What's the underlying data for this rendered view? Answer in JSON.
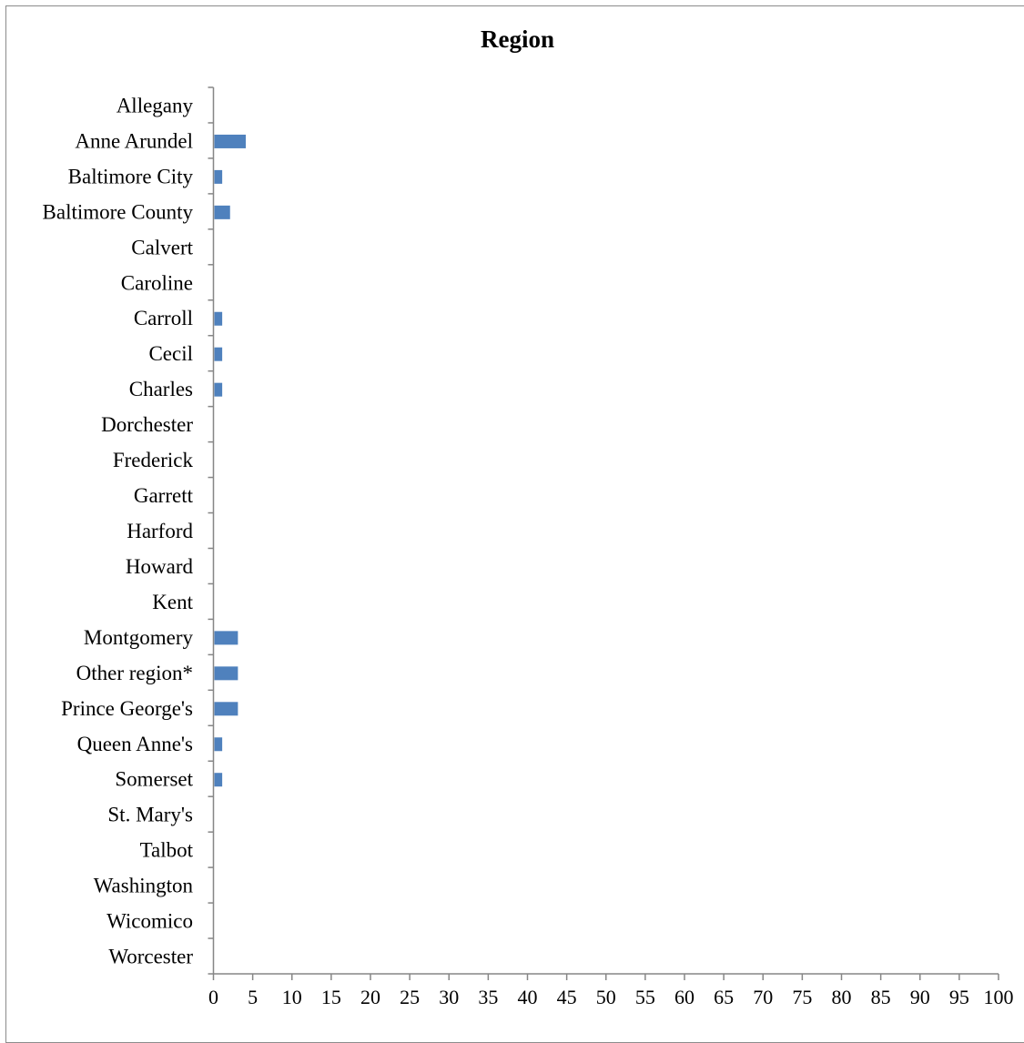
{
  "colors": {
    "bar": "#4f81bd",
    "axis": "#868686",
    "frame": "#8c8c8c"
  },
  "chart_data": {
    "type": "bar",
    "orientation": "horizontal",
    "title": "Region",
    "xlabel": "",
    "ylabel": "",
    "categories": [
      "Allegany",
      "Anne Arundel",
      "Baltimore City",
      "Baltimore County",
      "Calvert",
      "Caroline",
      "Carroll",
      "Cecil",
      "Charles",
      "Dorchester",
      "Frederick",
      "Garrett",
      "Harford",
      "Howard",
      "Kent",
      "Montgomery",
      "Other region*",
      "Prince George's",
      "Queen Anne's",
      "Somerset",
      "St. Mary's",
      "Talbot",
      "Washington",
      "Wicomico",
      "Worcester"
    ],
    "values": [
      0,
      4,
      1,
      2,
      0,
      0,
      1,
      1,
      1,
      0,
      0,
      0,
      0,
      0,
      0,
      3,
      3,
      3,
      1,
      1,
      0,
      0,
      0,
      0,
      0
    ],
    "xlim": [
      0,
      100
    ],
    "xticks": [
      0,
      5,
      10,
      15,
      20,
      25,
      30,
      35,
      40,
      45,
      50,
      55,
      60,
      65,
      70,
      75,
      80,
      85,
      90,
      95,
      100
    ],
    "grid": false,
    "legend": "none"
  }
}
